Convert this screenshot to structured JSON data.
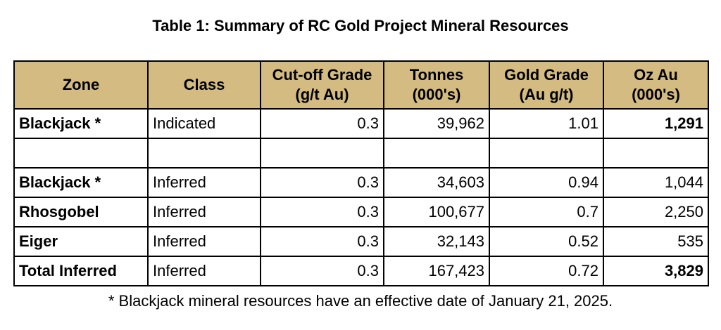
{
  "title": "Table 1: Summary of RC Gold Project Mineral Resources",
  "table": {
    "headers": [
      {
        "line1": "Zone",
        "line2": ""
      },
      {
        "line1": "Class",
        "line2": ""
      },
      {
        "line1": "Cut-off Grade",
        "line2": "(g/t Au)"
      },
      {
        "line1": "Tonnes",
        "line2": "(000's)"
      },
      {
        "line1": "Gold Grade",
        "line2": "(Au g/t)"
      },
      {
        "line1": "Oz Au",
        "line2": "(000's)"
      }
    ],
    "rows": [
      {
        "zone": "Blackjack *",
        "class": "Indicated",
        "cutoff": "0.3",
        "tonnes": "39,962",
        "grade": "1.01",
        "oz": "1,291",
        "oz_bold": true
      },
      {
        "blank": true
      },
      {
        "zone": "Blackjack *",
        "class": "Inferred",
        "cutoff": "0.3",
        "tonnes": "34,603",
        "grade": "0.94",
        "oz": "1,044",
        "oz_bold": false
      },
      {
        "zone": "Rhosgobel",
        "class": "Inferred",
        "cutoff": "0.3",
        "tonnes": "100,677",
        "grade": "0.7",
        "oz": "2,250",
        "oz_bold": false
      },
      {
        "zone": "Eiger",
        "class": "Inferred",
        "cutoff": "0.3",
        "tonnes": "32,143",
        "grade": "0.52",
        "oz": "535",
        "oz_bold": false
      },
      {
        "zone": "Total Inferred",
        "class": "Inferred",
        "cutoff": "0.3",
        "tonnes": "167,423",
        "grade": "0.72",
        "oz": "3,829",
        "oz_bold": true
      }
    ]
  },
  "footnote": "* Blackjack mineral resources have an effective date of January 21, 2025.",
  "colors": {
    "header_bg": "#d3bb82",
    "border": "#000000"
  }
}
